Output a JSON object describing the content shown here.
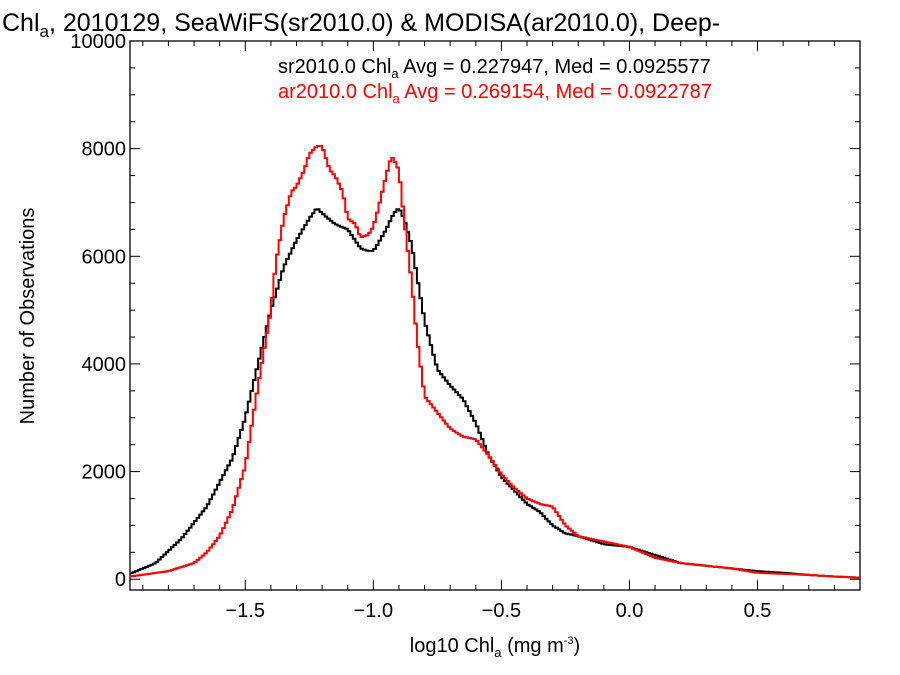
{
  "chart_data": {
    "type": "line",
    "title": {
      "pre": "Chl",
      "sub": "a",
      "post": ", 2010129, SeaWiFS(sr2010.0) & MODISA(ar2010.0), Deep-"
    },
    "xlabel": {
      "pre": "log10 Chl",
      "sub": "a",
      "post": " (mg m",
      "sup": "-3",
      "end": ")"
    },
    "ylabel": "Number of Observations",
    "xlim": [
      -1.95,
      0.9
    ],
    "ylim": [
      -200,
      10000
    ],
    "xticks": [
      -1.5,
      -1.0,
      -0.5,
      0.0,
      0.5
    ],
    "xtick_labels": [
      "−1.5",
      "−1.0",
      "−0.5",
      "0.0",
      "0.5"
    ],
    "yticks": [
      0,
      2000,
      4000,
      6000,
      8000,
      10000
    ],
    "ytick_labels": [
      "0",
      "2000",
      "4000",
      "6000",
      "8000",
      "10000"
    ],
    "legend_position": "top-right",
    "series": [
      {
        "name": "sr2010.0",
        "legend": {
          "pre": "sr2010.0 Chl",
          "sub": "a",
          "post": " Avg = 0.227947, Med = 0.0925577"
        },
        "color": "#000000",
        "x": [
          -1.95,
          -1.85,
          -1.75,
          -1.65,
          -1.55,
          -1.5,
          -1.45,
          -1.4,
          -1.35,
          -1.3,
          -1.25,
          -1.22,
          -1.2,
          -1.15,
          -1.1,
          -1.05,
          -1.02,
          -1.0,
          -0.98,
          -0.95,
          -0.92,
          -0.9,
          -0.88,
          -0.85,
          -0.8,
          -0.75,
          -0.7,
          -0.65,
          -0.6,
          -0.55,
          -0.5,
          -0.45,
          -0.4,
          -0.35,
          -0.3,
          -0.25,
          -0.2,
          -0.1,
          0.0,
          0.1,
          0.2,
          0.3,
          0.4,
          0.5,
          0.6,
          0.7,
          0.8,
          0.9
        ],
        "y": [
          100,
          300,
          750,
          1350,
          2250,
          3000,
          4000,
          5000,
          5800,
          6300,
          6700,
          6900,
          6800,
          6600,
          6500,
          6150,
          6100,
          6100,
          6250,
          6500,
          6800,
          6900,
          6700,
          6200,
          4800,
          3900,
          3600,
          3350,
          2900,
          2300,
          1900,
          1650,
          1400,
          1250,
          1000,
          850,
          800,
          650,
          600,
          450,
          300,
          250,
          200,
          150,
          120,
          80,
          50,
          30
        ]
      },
      {
        "name": "ar2010.0",
        "legend": {
          "pre": "ar2010.0 Chl",
          "sub": "a",
          "post": " Avg = 0.269154, Med = 0.0922787"
        },
        "color": "#ff0000",
        "x": [
          -1.95,
          -1.8,
          -1.7,
          -1.65,
          -1.6,
          -1.55,
          -1.5,
          -1.47,
          -1.45,
          -1.4,
          -1.38,
          -1.35,
          -1.32,
          -1.3,
          -1.27,
          -1.25,
          -1.22,
          -1.2,
          -1.17,
          -1.15,
          -1.12,
          -1.1,
          -1.07,
          -1.05,
          -1.02,
          -1.0,
          -0.98,
          -0.95,
          -0.93,
          -0.92,
          -0.9,
          -0.88,
          -0.85,
          -0.83,
          -0.8,
          -0.75,
          -0.7,
          -0.65,
          -0.6,
          -0.55,
          -0.5,
          -0.45,
          -0.4,
          -0.35,
          -0.3,
          -0.25,
          -0.2,
          -0.1,
          0.0,
          0.1,
          0.2,
          0.3,
          0.4,
          0.5,
          0.6,
          0.7,
          0.8,
          0.9
        ],
        "y": [
          50,
          150,
          300,
          500,
          800,
          1300,
          2100,
          3000,
          3600,
          5000,
          5900,
          6700,
          7200,
          7300,
          7600,
          7900,
          8050,
          8050,
          7600,
          7500,
          7200,
          6700,
          6600,
          6350,
          6400,
          6550,
          6900,
          7500,
          7850,
          7800,
          7600,
          6700,
          5500,
          4500,
          3400,
          3100,
          2800,
          2650,
          2600,
          2300,
          1950,
          1700,
          1500,
          1400,
          1350,
          1000,
          800,
          700,
          600,
          400,
          300,
          250,
          200,
          120,
          100,
          80,
          50,
          30
        ]
      }
    ]
  }
}
